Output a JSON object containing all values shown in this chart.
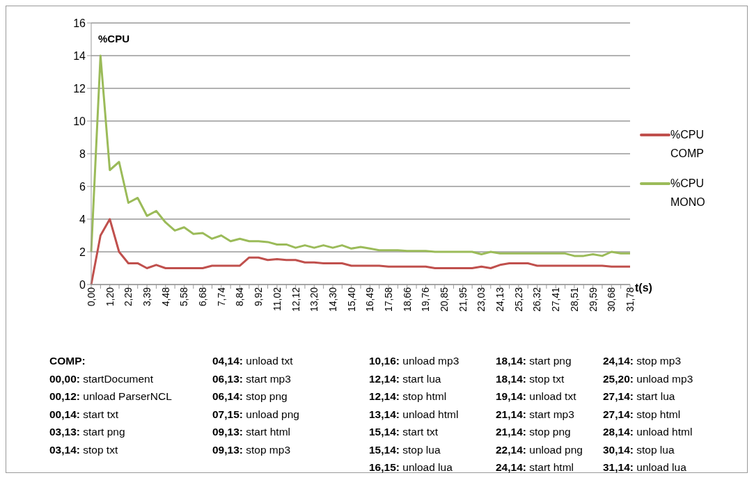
{
  "chart_data": {
    "type": "line",
    "xlabel": "t(s)",
    "ylabel": "%CPU",
    "categories": [
      "0,00",
      null,
      "1,20",
      null,
      "2,29",
      null,
      "3,39",
      null,
      "4,48",
      null,
      "5,58",
      null,
      "6,68",
      null,
      "7,74",
      null,
      "8,84",
      null,
      "9,92",
      null,
      "11,02",
      null,
      "12,12",
      null,
      "13,20",
      null,
      "14,30",
      null,
      "15,40",
      null,
      "16,49",
      null,
      "17,58",
      null,
      "18,66",
      null,
      "19,76",
      null,
      "20,85",
      null,
      "21,95",
      null,
      "23,03",
      null,
      "24,13",
      null,
      "25,23",
      null,
      "26,32",
      null,
      "27,41",
      null,
      "28,51",
      null,
      "29,59",
      null,
      "30,68",
      null,
      "31,78"
    ],
    "series": [
      {
        "name": "%CPU COMP",
        "color": "#c0504d",
        "values": [
          0,
          3,
          4,
          2,
          1.3,
          1.3,
          1.0,
          1.2,
          1.0,
          1.0,
          1.0,
          1.0,
          1.0,
          1.15,
          1.15,
          1.15,
          1.15,
          1.65,
          1.65,
          1.5,
          1.55,
          1.5,
          1.5,
          1.35,
          1.35,
          1.3,
          1.3,
          1.3,
          1.15,
          1.15,
          1.15,
          1.15,
          1.1,
          1.1,
          1.1,
          1.1,
          1.1,
          1.0,
          1.0,
          1.0,
          1.0,
          1.0,
          1.1,
          1.0,
          1.2,
          1.3,
          1.3,
          1.3,
          1.15,
          1.15,
          1.15,
          1.15,
          1.15,
          1.15,
          1.15,
          1.15,
          1.1,
          1.1,
          1.1
        ]
      },
      {
        "name": "%CPU MONO",
        "color": "#9bbb59",
        "values": [
          2,
          14,
          7,
          7.5,
          5,
          5.3,
          4.2,
          4.5,
          3.8,
          3.3,
          3.5,
          3.1,
          3.15,
          2.8,
          3.0,
          2.65,
          2.8,
          2.65,
          2.65,
          2.6,
          2.45,
          2.45,
          2.25,
          2.4,
          2.25,
          2.4,
          2.25,
          2.4,
          2.2,
          2.3,
          2.2,
          2.1,
          2.1,
          2.1,
          2.05,
          2.05,
          2.05,
          2.0,
          2.0,
          2.0,
          2.0,
          2.0,
          1.85,
          2.0,
          1.9,
          1.9,
          1.9,
          1.9,
          1.9,
          1.9,
          1.9,
          1.9,
          1.75,
          1.75,
          1.85,
          1.75,
          2.0,
          1.9,
          1.9
        ]
      }
    ],
    "ylim": [
      0,
      16
    ],
    "yticks": [
      0,
      2,
      4,
      6,
      8,
      10,
      12,
      14,
      16
    ],
    "grid": "y",
    "legend": "right",
    "marker": "none",
    "line_style": "solid",
    "annotations": [
      "COMP:",
      "00,00: startDocument",
      "00,12: unload ParserNCL",
      "00,14: start txt",
      "03,13: start png",
      "03,14: stop txt",
      "04,14: unload txt",
      "06,13: start mp3",
      "06,14: stop png",
      "07,15: unload png",
      "09,13: start html",
      "09,13: stop mp3",
      "10,16: unload mp3",
      "12,14: start lua",
      "12,14: stop html",
      "13,14: unload html",
      "15,14: start txt",
      "15,14: stop lua",
      "16,15: unload lua",
      "18,14: start png",
      "18,14: stop txt",
      "19,14: unload txt",
      "21,14: start mp3",
      "21,14: stop png",
      "22,14: unload png",
      "24,14: start html",
      "24,14: stop mp3",
      "25,20: unload mp3",
      "27,14: start lua",
      "27,14: stop html",
      "28,14: unload html",
      "30,14: stop lua",
      "31,14: unload lua"
    ]
  }
}
